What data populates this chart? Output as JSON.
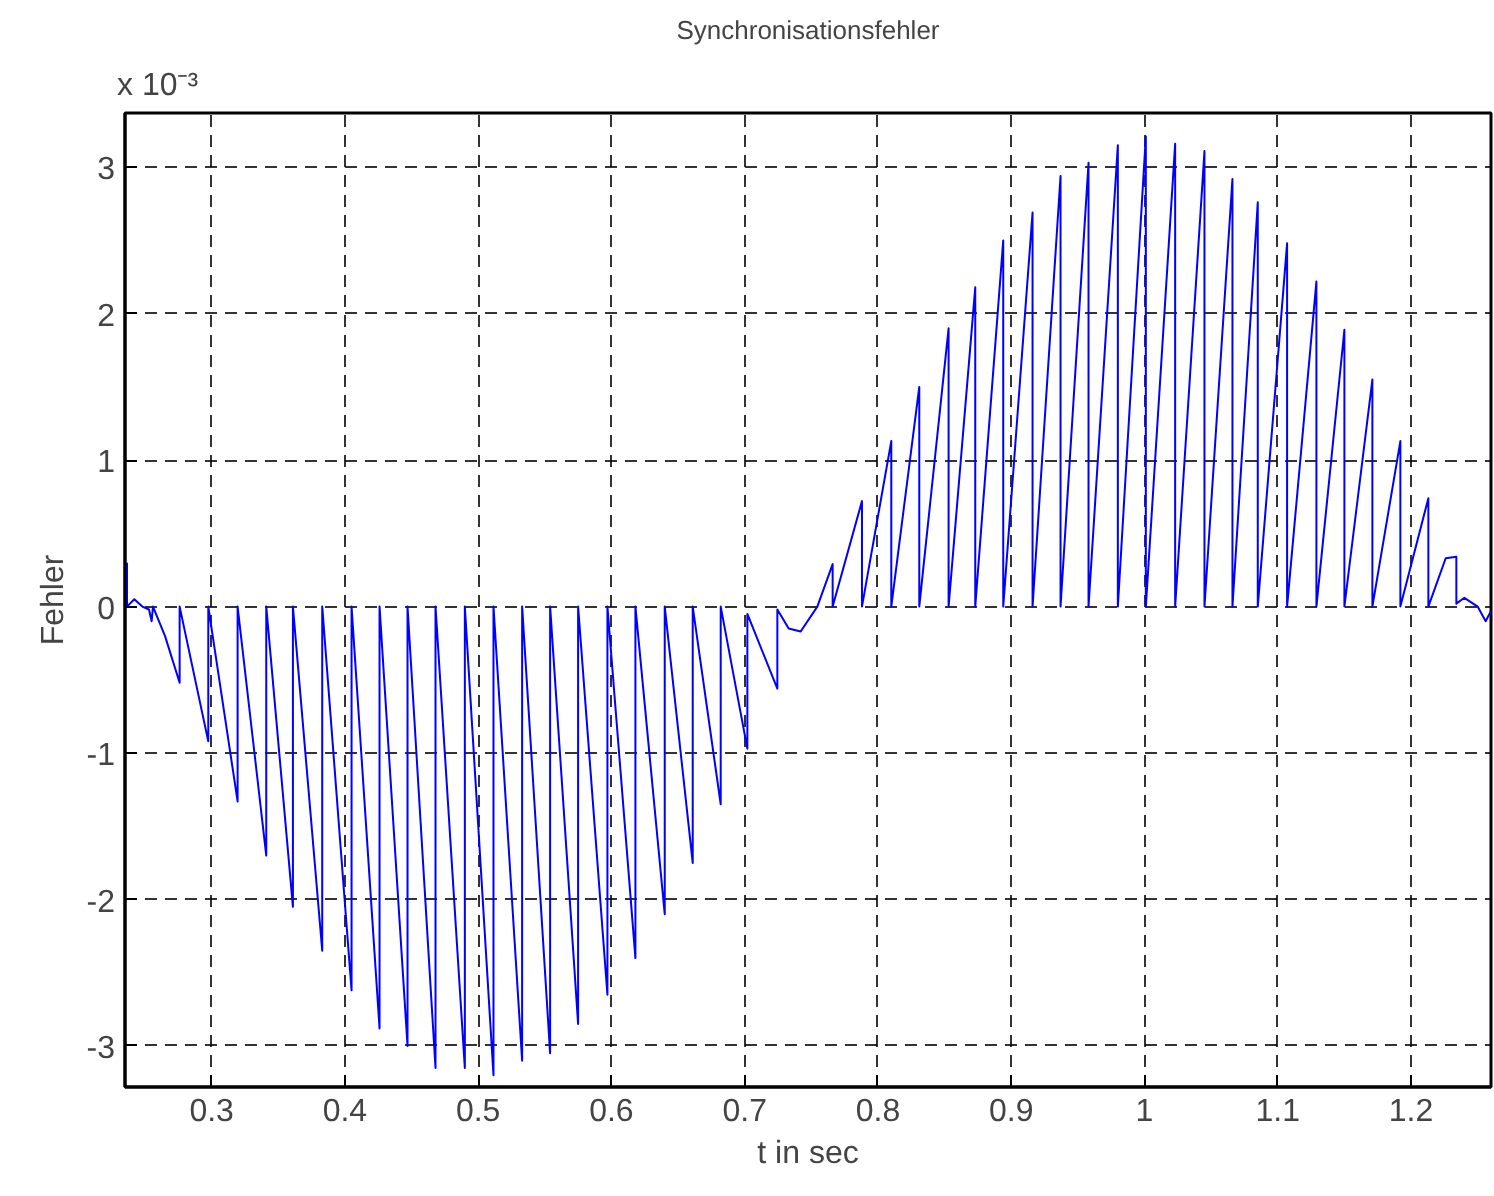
{
  "chart_data": {
    "type": "line",
    "title": "Synchronisationsfehler",
    "xlabel": "t in sec",
    "ylabel": "Fehler",
    "annotations": [
      "x 10⁻³"
    ],
    "xlim": [
      0.235,
      1.26
    ],
    "xticks": [
      0.3,
      0.4,
      0.5,
      0.6,
      0.7,
      0.8,
      0.9,
      1,
      1.1,
      1.2
    ],
    "ylim": [
      -3.28,
      3.37
    ],
    "yticks": [
      -3,
      -2,
      -1,
      0,
      1,
      2,
      3
    ],
    "grid": true,
    "line_style": "solid",
    "series": [
      {
        "color": "#0000ff",
        "x": [
          0.2365,
          0.2365,
          0.242,
          0.248,
          0.253,
          0.255,
          0.256,
          0.265,
          0.276,
          0.276,
          0.2975,
          0.2975,
          0.3195,
          0.3195,
          0.341,
          0.341,
          0.361,
          0.361,
          0.383,
          0.383,
          0.405,
          0.405,
          0.426,
          0.426,
          0.447,
          0.447,
          0.468,
          0.468,
          0.49,
          0.49,
          0.5115,
          0.5115,
          0.533,
          0.533,
          0.554,
          0.554,
          0.575,
          0.575,
          0.597,
          0.597,
          0.618,
          0.618,
          0.64,
          0.64,
          0.661,
          0.661,
          0.682,
          0.682,
          0.702,
          0.702,
          0.7245,
          0.7245,
          0.733,
          0.742,
          0.7545,
          0.766,
          0.766,
          0.788,
          0.788,
          0.81,
          0.81,
          0.831,
          0.831,
          0.853,
          0.853,
          0.873,
          0.873,
          0.894,
          0.894,
          0.916,
          0.916,
          0.937,
          0.937,
          0.958,
          0.958,
          0.98,
          0.98,
          1.001,
          1.001,
          1.023,
          1.023,
          1.045,
          1.045,
          1.066,
          1.066,
          1.085,
          1.085,
          1.107,
          1.107,
          1.129,
          1.129,
          1.15,
          1.15,
          1.171,
          1.171,
          1.192,
          1.192,
          1.213,
          1.213,
          1.226,
          1.234,
          1.234,
          1.24,
          1.25,
          1.256,
          1.26
        ],
        "values": [
          0.3,
          0,
          0.05,
          0,
          -0.02,
          -0.1,
          0,
          -0.2,
          -0.52,
          0,
          -0.92,
          0,
          -1.33,
          0,
          -1.7,
          0,
          -2.05,
          0,
          -2.35,
          0,
          -2.62,
          0,
          -2.88,
          0,
          -3.0,
          0,
          -3.15,
          0,
          -3.15,
          0,
          -3.2,
          0,
          -3.1,
          0,
          -3.05,
          0,
          -2.85,
          0,
          -2.65,
          0,
          -2.4,
          0,
          -2.1,
          0,
          -1.75,
          0,
          -1.35,
          0,
          -0.97,
          -0.05,
          -0.56,
          -0.02,
          -0.15,
          -0.17,
          0,
          0.29,
          0,
          0.72,
          0,
          1.13,
          0,
          1.5,
          0,
          1.9,
          0,
          2.18,
          0,
          2.5,
          0,
          2.69,
          0,
          2.94,
          0,
          3.03,
          0,
          3.15,
          0,
          3.21,
          0,
          3.16,
          0,
          3.11,
          0,
          2.92,
          0,
          2.76,
          0,
          2.48,
          0,
          2.22,
          0,
          1.89,
          0,
          1.55,
          0,
          1.13,
          0,
          0.74,
          0,
          0.33,
          0.34,
          0.02,
          0.06,
          0,
          -0.1,
          -0.03
        ]
      }
    ]
  }
}
